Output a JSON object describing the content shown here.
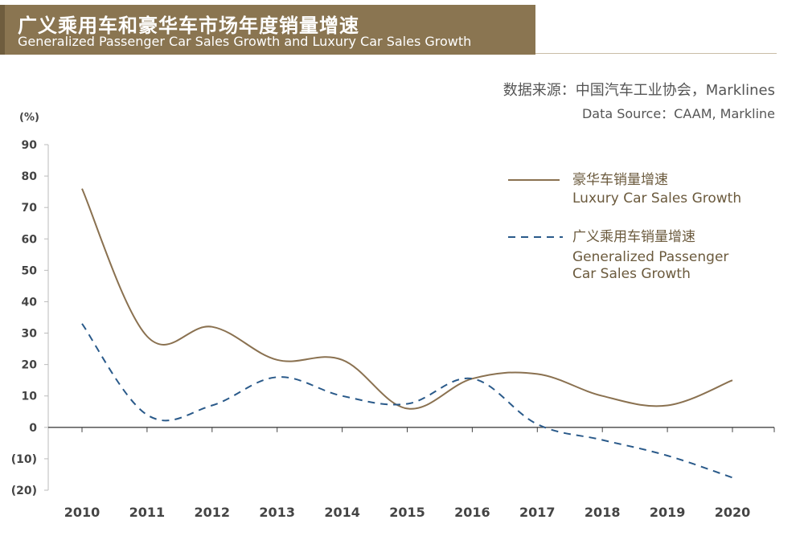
{
  "header": {
    "title_cn": "广义乘用车和豪华车市场年度销量增速",
    "title_en": "Generalized Passenger Car Sales Growth and Luxury Car Sales Growth"
  },
  "source": {
    "cn": "数据来源：中国汽车工业协会，Marklines",
    "en": "Data Source：CAAM, Markline"
  },
  "colors": {
    "luxury": "#8a7150",
    "passenger": "#2a5a8a",
    "header": "#8a7551"
  },
  "chart_data": {
    "type": "line",
    "unit_label": "(%)",
    "categories": [
      "2010",
      "2011",
      "2012",
      "2013",
      "2014",
      "2015",
      "2016",
      "2017",
      "2018",
      "2019",
      "2020"
    ],
    "ylim": [
      -20,
      90
    ],
    "y_ticks": [
      {
        "value": 90,
        "label": "90"
      },
      {
        "value": 80,
        "label": "80"
      },
      {
        "value": 70,
        "label": "70"
      },
      {
        "value": 60,
        "label": "60"
      },
      {
        "value": 50,
        "label": "50"
      },
      {
        "value": 40,
        "label": "40"
      },
      {
        "value": 30,
        "label": "30"
      },
      {
        "value": 20,
        "label": "20"
      },
      {
        "value": 10,
        "label": "10"
      },
      {
        "value": 0,
        "label": "0"
      },
      {
        "value": -10,
        "label": "(10)"
      },
      {
        "value": -20,
        "label": "(20)"
      }
    ],
    "series": [
      {
        "name_cn": "豪华车销量增速",
        "name_en": "Luxury Car Sales Growth",
        "style": "solid",
        "values": [
          76,
          29,
          32,
          21.5,
          21.5,
          6,
          15.5,
          17,
          10,
          7,
          15
        ]
      },
      {
        "name_cn": "广义乘用车销量增速",
        "name_en_line1": "Generalized Passenger",
        "name_en_line2": "Car Sales Growth",
        "style": "dashed",
        "values": [
          33,
          4,
          7,
          16,
          10,
          7.5,
          15.5,
          1,
          -4,
          -9,
          -16
        ]
      }
    ],
    "grid": false,
    "legend_position": "right"
  }
}
